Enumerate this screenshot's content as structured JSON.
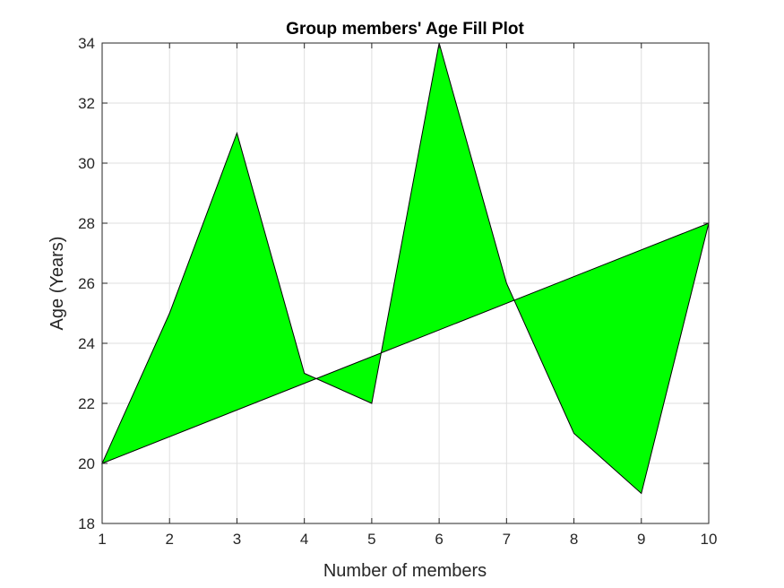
{
  "chart_data": {
    "type": "area",
    "subtype": "fill-polygon",
    "title": "Group members' Age Fill Plot",
    "xlabel": "Number of members",
    "ylabel": "Age (Years)",
    "xlim": [
      1,
      10
    ],
    "ylim": [
      18,
      34
    ],
    "xticks": [
      1,
      2,
      3,
      4,
      5,
      6,
      7,
      8,
      9,
      10
    ],
    "yticks": [
      18,
      20,
      22,
      24,
      26,
      28,
      30,
      32,
      34
    ],
    "grid": true,
    "legend": "none",
    "fill_color": "#00ff00",
    "edge_color": "#000000",
    "series": [
      {
        "x": [
          1,
          2,
          3,
          4,
          5,
          6,
          7,
          8,
          9,
          10
        ],
        "y": [
          20,
          25,
          31,
          23,
          22,
          34,
          26,
          21,
          19,
          28
        ]
      }
    ]
  },
  "colors": {
    "fill": "#00ff00",
    "edge": "#000000",
    "grid": "#dfdfdf",
    "axis": "#262626",
    "background": "#ffffff"
  }
}
